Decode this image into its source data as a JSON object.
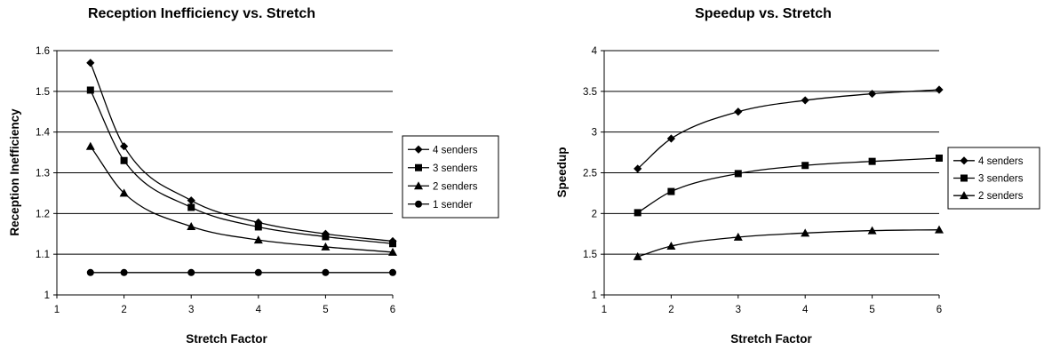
{
  "chart_data": [
    {
      "type": "line",
      "title": "Reception Inefficiency vs. Stretch",
      "xlabel": "Stretch Factor",
      "ylabel": "Reception Inefficiency",
      "xlim": [
        1,
        6
      ],
      "ylim": [
        1,
        1.6
      ],
      "xticks": [
        "1",
        "2",
        "3",
        "4",
        "5",
        "6"
      ],
      "yticks": [
        "1",
        "1.1",
        "1.2",
        "1.3",
        "1.4",
        "1.5",
        "1.6"
      ],
      "grid": "horizontal",
      "legend_position": "right",
      "x": [
        1.5,
        2,
        3,
        4,
        5,
        6
      ],
      "series": [
        {
          "name": "4 senders",
          "marker": "diamond",
          "values": [
            1.57,
            1.365,
            1.232,
            1.178,
            1.15,
            1.132
          ]
        },
        {
          "name": "3 senders",
          "marker": "square",
          "values": [
            1.503,
            1.33,
            1.215,
            1.167,
            1.143,
            1.126
          ]
        },
        {
          "name": "2 senders",
          "marker": "triangle",
          "values": [
            1.365,
            1.25,
            1.168,
            1.135,
            1.118,
            1.105
          ]
        },
        {
          "name": "1 sender",
          "marker": "circle",
          "values": [
            1.055,
            1.055,
            1.055,
            1.055,
            1.055,
            1.055
          ]
        }
      ]
    },
    {
      "type": "line",
      "title": "Speedup vs. Stretch",
      "xlabel": "Stretch Factor",
      "ylabel": "Speedup",
      "xlim": [
        1,
        6
      ],
      "ylim": [
        1,
        4
      ],
      "xticks": [
        "1",
        "2",
        "3",
        "4",
        "5",
        "6"
      ],
      "yticks": [
        "1",
        "1.5",
        "2",
        "2.5",
        "3",
        "3.5",
        "4"
      ],
      "grid": "horizontal",
      "legend_position": "right",
      "x": [
        1.5,
        2,
        3,
        4,
        5,
        6
      ],
      "series": [
        {
          "name": "4 senders",
          "marker": "diamond",
          "values": [
            2.55,
            2.92,
            3.25,
            3.39,
            3.47,
            3.52
          ]
        },
        {
          "name": "3 senders",
          "marker": "square",
          "values": [
            2.01,
            2.27,
            2.49,
            2.59,
            2.64,
            2.68
          ]
        },
        {
          "name": "2 senders",
          "marker": "triangle",
          "values": [
            1.47,
            1.6,
            1.71,
            1.76,
            1.79,
            1.8
          ]
        }
      ]
    }
  ]
}
